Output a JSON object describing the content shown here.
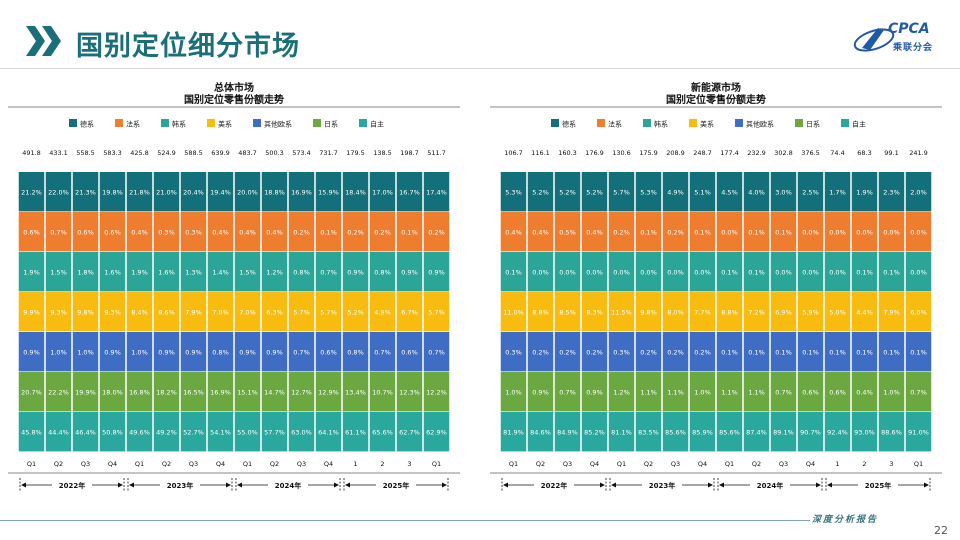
{
  "header": {
    "title": "国别定位细分市场"
  },
  "logo": {
    "text": "CPCA",
    "subtitle": "乘联分会"
  },
  "footer": {
    "text": "深度分析报告",
    "page": "22"
  },
  "colors": {
    "德系": "#13707a",
    "法系": "#ef7d2f",
    "韩系": "#2aa597",
    "美系": "#f7bc0f",
    "其他欧系": "#3f6dc4",
    "日系": "#6ca841",
    "自主": "#2aa89d"
  },
  "chart_data": [
    {
      "type": "bar",
      "stacked": "100%",
      "title": "总体市场",
      "subtitle": "国别定位零售份额走势",
      "categories": [
        "Q1",
        "Q2",
        "Q3",
        "Q4",
        "Q1",
        "Q2",
        "Q3",
        "Q4",
        "Q1",
        "Q2",
        "Q3",
        "Q4",
        "1",
        "2",
        "3",
        "Q1"
      ],
      "year_groups": [
        {
          "label": "2022年",
          "span": 4
        },
        {
          "label": "2023年",
          "span": 4
        },
        {
          "label": "2024年",
          "span": 4
        },
        {
          "label": "2025年",
          "span": 4
        }
      ],
      "totals": [
        "491.8",
        "433.1",
        "558.5",
        "583.3",
        "425.8",
        "524.9",
        "588.5",
        "639.9",
        "483.7",
        "500.3",
        "573.4",
        "731.7",
        "179.5",
        "138.5",
        "198.7",
        "511.7"
      ],
      "legend": [
        "德系",
        "法系",
        "韩系",
        "美系",
        "其他欧系",
        "日系",
        "自主"
      ],
      "series": [
        {
          "name": "德系",
          "values": [
            "21.2%",
            "22.0%",
            "21.3%",
            "19.8%",
            "21.8%",
            "21.0%",
            "20.4%",
            "19.4%",
            "20.0%",
            "18.8%",
            "16.9%",
            "15.9%",
            "18.4%",
            "17.0%",
            "16.7%",
            "17.4%"
          ]
        },
        {
          "name": "法系",
          "values": [
            "0.6%",
            "0.7%",
            "0.6%",
            "0.6%",
            "0.4%",
            "0.3%",
            "0.3%",
            "0.4%",
            "0.4%",
            "0.4%",
            "0.2%",
            "0.1%",
            "0.2%",
            "0.2%",
            "0.1%",
            "0.2%"
          ]
        },
        {
          "name": "韩系",
          "values": [
            "1.9%",
            "1.5%",
            "1.8%",
            "1.6%",
            "1.9%",
            "1.6%",
            "1.3%",
            "1.4%",
            "1.5%",
            "1.2%",
            "0.8%",
            "0.7%",
            "0.9%",
            "0.8%",
            "0.9%",
            "0.9%"
          ]
        },
        {
          "name": "美系",
          "values": [
            "9.9%",
            "9.3%",
            "9.8%",
            "9.3%",
            "8.4%",
            "8.6%",
            "7.9%",
            "7.0%",
            "7.0%",
            "6.3%",
            "5.7%",
            "5.7%",
            "5.2%",
            "4.9%",
            "6.7%",
            "5.7%"
          ]
        },
        {
          "name": "其他欧系",
          "values": [
            "0.9%",
            "1.0%",
            "1.0%",
            "0.9%",
            "1.0%",
            "0.9%",
            "0.9%",
            "0.8%",
            "0.9%",
            "0.9%",
            "0.7%",
            "0.6%",
            "0.8%",
            "0.7%",
            "0.6%",
            "0.7%"
          ]
        },
        {
          "name": "日系",
          "values": [
            "20.7%",
            "22.2%",
            "19.9%",
            "18.0%",
            "16.8%",
            "18.2%",
            "16.5%",
            "16.9%",
            "15.1%",
            "14.7%",
            "12.7%",
            "12.9%",
            "13.4%",
            "10.7%",
            "12.3%",
            "12.2%"
          ]
        },
        {
          "name": "自主",
          "values": [
            "45.8%",
            "44.4%",
            "46.4%",
            "50.8%",
            "49.6%",
            "49.2%",
            "52.7%",
            "54.1%",
            "55.0%",
            "57.7%",
            "63.0%",
            "64.1%",
            "61.1%",
            "65.6%",
            "62.7%",
            "62.9%"
          ]
        }
      ]
    },
    {
      "type": "bar",
      "stacked": "100%",
      "title": "新能源市场",
      "subtitle": "国别定位零售份额走势",
      "categories": [
        "Q1",
        "Q2",
        "Q3",
        "Q4",
        "Q1",
        "Q2",
        "Q3",
        "Q4",
        "Q1",
        "Q2",
        "Q3",
        "Q4",
        "1",
        "2",
        "3",
        "Q1"
      ],
      "year_groups": [
        {
          "label": "2022年",
          "span": 4
        },
        {
          "label": "2023年",
          "span": 4
        },
        {
          "label": "2024年",
          "span": 4
        },
        {
          "label": "2025年",
          "span": 4
        }
      ],
      "totals": [
        "106.7",
        "116.1",
        "160.3",
        "176.9",
        "130.6",
        "175.9",
        "208.9",
        "248.7",
        "177.4",
        "232.9",
        "302.8",
        "376.5",
        "74.4",
        "68.3",
        "99.1",
        "241.9"
      ],
      "legend": [
        "德系",
        "法系",
        "韩系",
        "美系",
        "其他欧系",
        "日系",
        "自主"
      ],
      "series": [
        {
          "name": "德系",
          "values": [
            "5.3%",
            "5.2%",
            "5.2%",
            "5.2%",
            "5.7%",
            "5.3%",
            "4.9%",
            "5.1%",
            "4.5%",
            "4.0%",
            "3.0%",
            "2.5%",
            "1.7%",
            "1.9%",
            "2.3%",
            "2.0%"
          ]
        },
        {
          "name": "法系",
          "values": [
            "0.4%",
            "0.4%",
            "0.5%",
            "0.4%",
            "0.2%",
            "0.1%",
            "0.2%",
            "0.1%",
            "0.0%",
            "0.1%",
            "0.1%",
            "0.0%",
            "0.0%",
            "0.0%",
            "0.0%",
            "0.0%"
          ]
        },
        {
          "name": "韩系",
          "values": [
            "0.1%",
            "0.0%",
            "0.0%",
            "0.0%",
            "0.0%",
            "0.0%",
            "0.0%",
            "0.0%",
            "0.1%",
            "0.1%",
            "0.0%",
            "0.0%",
            "0.0%",
            "0.1%",
            "0.1%",
            "0.0%"
          ]
        },
        {
          "name": "美系",
          "values": [
            "11.0%",
            "8.8%",
            "8.5%",
            "8.3%",
            "11.5%",
            "9.8%",
            "8.0%",
            "7.7%",
            "8.8%",
            "7.2%",
            "6.9%",
            "5.9%",
            "5.0%",
            "4.4%",
            "7.9%",
            "6.0%"
          ]
        },
        {
          "name": "其他欧系",
          "values": [
            "0.3%",
            "0.2%",
            "0.2%",
            "0.2%",
            "0.3%",
            "0.2%",
            "0.2%",
            "0.2%",
            "0.1%",
            "0.1%",
            "0.1%",
            "0.1%",
            "0.1%",
            "0.1%",
            "0.1%",
            "0.1%"
          ]
        },
        {
          "name": "日系",
          "values": [
            "1.0%",
            "0.9%",
            "0.7%",
            "0.9%",
            "1.2%",
            "1.1%",
            "1.1%",
            "1.0%",
            "1.1%",
            "1.1%",
            "0.7%",
            "0.6%",
            "0.6%",
            "0.4%",
            "1.0%",
            "0.7%"
          ]
        },
        {
          "name": "自主",
          "values": [
            "81.9%",
            "84.6%",
            "84.9%",
            "85.2%",
            "81.1%",
            "83.5%",
            "85.6%",
            "85.9%",
            "85.6%",
            "87.4%",
            "89.1%",
            "90.7%",
            "92.4%",
            "93.0%",
            "88.6%",
            "91.0%"
          ]
        }
      ]
    }
  ]
}
